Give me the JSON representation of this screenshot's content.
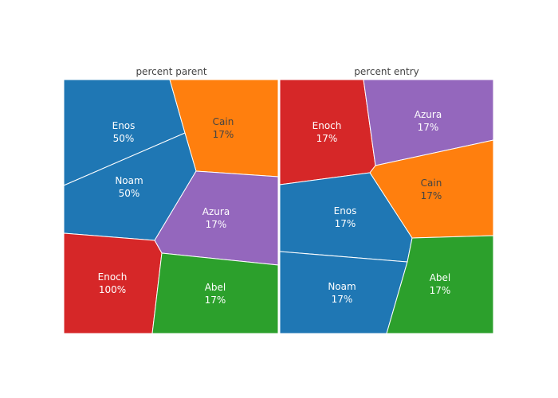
{
  "chart_data": [
    {
      "type": "voronoi-treemap",
      "title": "percent parent",
      "cells": [
        {
          "name": "Enos",
          "value_text": "50%",
          "value": 50,
          "color": "#1f77b4",
          "text_color": "#ffffff"
        },
        {
          "name": "Cain",
          "value_text": "17%",
          "value": 17,
          "color": "#ff7f0e",
          "text_color": "#444444"
        },
        {
          "name": "Noam",
          "value_text": "50%",
          "value": 50,
          "color": "#1f77b4",
          "text_color": "#ffffff"
        },
        {
          "name": "Azura",
          "value_text": "17%",
          "value": 17,
          "color": "#9467bd",
          "text_color": "#ffffff"
        },
        {
          "name": "Enoch",
          "value_text": "100%",
          "value": 100,
          "color": "#d62728",
          "text_color": "#ffffff"
        },
        {
          "name": "Abel",
          "value_text": "17%",
          "value": 17,
          "color": "#2ca02c",
          "text_color": "#ffffff"
        }
      ]
    },
    {
      "type": "voronoi-treemap",
      "title": "percent entry",
      "cells": [
        {
          "name": "Enoch",
          "value_text": "17%",
          "value": 17,
          "color": "#d62728",
          "text_color": "#ffffff"
        },
        {
          "name": "Azura",
          "value_text": "17%",
          "value": 17,
          "color": "#9467bd",
          "text_color": "#ffffff"
        },
        {
          "name": "Cain",
          "value_text": "17%",
          "value": 17,
          "color": "#ff7f0e",
          "text_color": "#444444"
        },
        {
          "name": "Enos",
          "value_text": "17%",
          "value": 17,
          "color": "#1f77b4",
          "text_color": "#ffffff"
        },
        {
          "name": "Noam",
          "value_text": "17%",
          "value": 17,
          "color": "#1f77b4",
          "text_color": "#ffffff"
        },
        {
          "name": "Abel",
          "value_text": "17%",
          "value": 17,
          "color": "#2ca02c",
          "text_color": "#ffffff"
        }
      ]
    }
  ]
}
